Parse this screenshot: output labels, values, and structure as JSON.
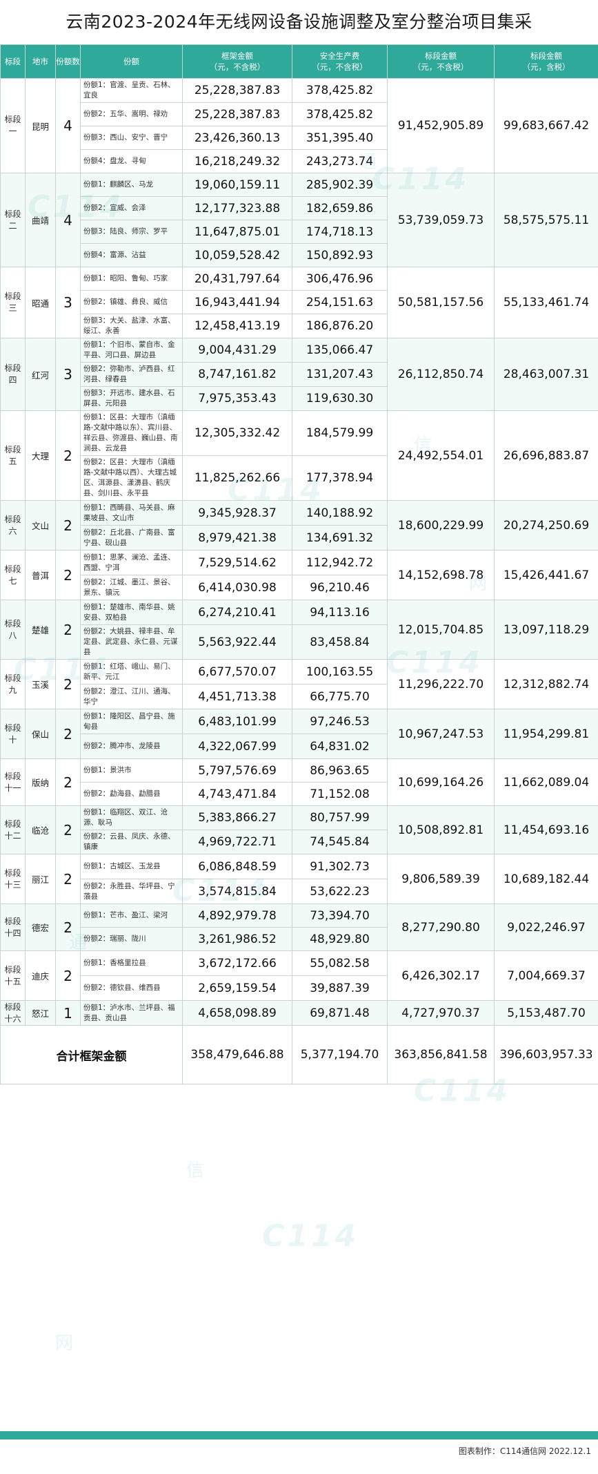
{
  "title": "云南2023-2024年无线网设备设施调整及室分整治项目集采",
  "headers": {
    "lot": "标段",
    "city": "地市",
    "count": "份额数",
    "share": "份额",
    "frame": "框架金额",
    "frame_sub": "（元，不含税）",
    "safety": "安全生产费",
    "safety_sub": "（元，不含税）",
    "lot_amount": "标段金额",
    "lot_amount_sub": "（元，不含税）",
    "lot_amount_tax": "标段金额",
    "lot_amount_tax_sub": "（元，含税）"
  },
  "lots": [
    {
      "lot": "标段一",
      "city": "昆明",
      "count": "4",
      "amount": "91,452,905.89",
      "amount_tax": "99,683,667.42",
      "shares": [
        {
          "desc": "份额1：官渡、呈贡、石林、宜良",
          "frame": "25,228,387.83",
          "safety": "378,425.82"
        },
        {
          "desc": "份额2：五华、嵩明、禄劝",
          "frame": "25,228,387.83",
          "safety": "378,425.82"
        },
        {
          "desc": "份额3：西山、安宁、晋宁",
          "frame": "23,426,360.13",
          "safety": "351,395.40"
        },
        {
          "desc": "份额4：盘龙、寻甸",
          "frame": "16,218,249.32",
          "safety": "243,273.74"
        }
      ]
    },
    {
      "lot": "标段二",
      "city": "曲靖",
      "count": "4",
      "amount": "53,739,059.73",
      "amount_tax": "58,575,575.11",
      "shares": [
        {
          "desc": "份额1：麒麟区、马龙",
          "frame": "19,060,159.11",
          "safety": "285,902.39"
        },
        {
          "desc": "份额2：宣威、会泽",
          "frame": "12,177,323.88",
          "safety": "182,659.86"
        },
        {
          "desc": "份额3：陆良、师宗、罗平",
          "frame": "11,647,875.01",
          "safety": "174,718.13"
        },
        {
          "desc": "份额4：富源、沾益",
          "frame": "10,059,528.42",
          "safety": "150,892.93"
        }
      ]
    },
    {
      "lot": "标段三",
      "city": "昭通",
      "count": "3",
      "amount": "50,581,157.56",
      "amount_tax": "55,133,461.74",
      "shares": [
        {
          "desc": "份额1：昭阳、鲁甸、巧家",
          "frame": "20,431,797.64",
          "safety": "306,476.96"
        },
        {
          "desc": "份额2：镇雄、彝良、威信",
          "frame": "16,943,441.94",
          "safety": "254,151.63"
        },
        {
          "desc": "份额3：大关、盐津、水富、绥江、永善",
          "frame": "12,458,413.19",
          "safety": "186,876.20"
        }
      ]
    },
    {
      "lot": "标段四",
      "city": "红河",
      "count": "3",
      "amount": "26,112,850.74",
      "amount_tax": "28,463,007.31",
      "shares": [
        {
          "desc": "份额1：个旧市、蒙自市、金平县、河口县、屏边县",
          "frame": "9,004,431.29",
          "safety": "135,066.47"
        },
        {
          "desc": "份额2：弥勒市、泸西县、红河县、绿春县",
          "frame": "8,747,161.82",
          "safety": "131,207.43"
        },
        {
          "desc": "份额3：开远市、建水县、石屏县、元阳县",
          "frame": "7,975,353.43",
          "safety": "119,630.30"
        }
      ]
    },
    {
      "lot": "标段五",
      "city": "大理",
      "count": "2",
      "amount": "24,492,554.01",
      "amount_tax": "26,696,883.87",
      "shares": [
        {
          "desc": "份额1：区县：大理市（滇缅路-文献中路以东）、宾川县、祥云县、弥渡县、巍山县、南涧县、云龙县",
          "frame": "12,305,332.42",
          "safety": "184,579.99"
        },
        {
          "desc": "份额2：区县：大理市（滇缅路-文献中路以西）、大理古城区、洱源县、漾濞县、鹤庆县、剑川县、永平县",
          "frame": "11,825,262.66",
          "safety": "177,378.94"
        }
      ]
    },
    {
      "lot": "标段六",
      "city": "文山",
      "count": "2",
      "amount": "18,600,229.99",
      "amount_tax": "20,274,250.69",
      "shares": [
        {
          "desc": "份额1：西畴县、马关县、麻栗坡县、文山市",
          "frame": "9,345,928.37",
          "safety": "140,188.92"
        },
        {
          "desc": "份额2：丘北县、广南县、富宁县、砚山县",
          "frame": "8,979,421.38",
          "safety": "134,691.32"
        }
      ]
    },
    {
      "lot": "标段七",
      "city": "普洱",
      "count": "2",
      "amount": "14,152,698.78",
      "amount_tax": "15,426,441.67",
      "shares": [
        {
          "desc": "份额1：思茅、澜沧、孟连、西盟、宁洱",
          "frame": "7,529,514.62",
          "safety": "112,942.72"
        },
        {
          "desc": "份额2：江城、墨江、景谷、景东、镇沅",
          "frame": "6,414,030.98",
          "safety": "96,210.46"
        }
      ]
    },
    {
      "lot": "标段八",
      "city": "楚雄",
      "count": "2",
      "amount": "12,015,704.85",
      "amount_tax": "13,097,118.29",
      "shares": [
        {
          "desc": "份额1：楚雄市、南华县、姚安县、双柏县",
          "frame": "6,274,210.41",
          "safety": "94,113.16"
        },
        {
          "desc": "份额2：大姚县、禄丰县、牟定县、武定县、永仁县、元谋县",
          "frame": "5,563,922.44",
          "safety": "83,458.84"
        }
      ]
    },
    {
      "lot": "标段九",
      "city": "玉溪",
      "count": "2",
      "amount": "11,296,222.70",
      "amount_tax": "12,312,882.74",
      "shares": [
        {
          "desc": "份额1：红塔、峨山、易门、新平、元江",
          "frame": "6,677,570.07",
          "safety": "100,163.55"
        },
        {
          "desc": "份额2：澄江、江川、通海、华宁",
          "frame": "4,451,713.38",
          "safety": "66,775.70"
        }
      ]
    },
    {
      "lot": "标段十",
      "city": "保山",
      "count": "2",
      "amount": "10,967,247.53",
      "amount_tax": "11,954,299.81",
      "shares": [
        {
          "desc": "份额1：隆阳区、昌宁县、施甸县",
          "frame": "6,483,101.99",
          "safety": "97,246.53"
        },
        {
          "desc": "份额2：腾冲市、龙陵县",
          "frame": "4,322,067.99",
          "safety": "64,831.02"
        }
      ]
    },
    {
      "lot": "标段十一",
      "city": "版纳",
      "count": "2",
      "amount": "10,699,164.26",
      "amount_tax": "11,662,089.04",
      "shares": [
        {
          "desc": "份额1：景洪市",
          "frame": "5,797,576.69",
          "safety": "86,963.65"
        },
        {
          "desc": "份额2：勐海县、勐腊县",
          "frame": "4,743,471.84",
          "safety": "71,152.08"
        }
      ]
    },
    {
      "lot": "标段十二",
      "city": "临沧",
      "count": "2",
      "amount": "10,508,892.81",
      "amount_tax": "11,454,693.16",
      "shares": [
        {
          "desc": "份额1：临翔区、双江、沧源、耿马",
          "frame": "5,383,866.27",
          "safety": "80,757.99"
        },
        {
          "desc": "份额2：云县、凤庆、永德、镇康",
          "frame": "4,969,722.71",
          "safety": "74,545.84"
        }
      ]
    },
    {
      "lot": "标段十三",
      "city": "丽江",
      "count": "2",
      "amount": "9,806,589.39",
      "amount_tax": "10,689,182.44",
      "shares": [
        {
          "desc": "份额1：古城区、玉龙县",
          "frame": "6,086,848.59",
          "safety": "91,302.73"
        },
        {
          "desc": "份额2：永胜县、华坪县、宁蒗县",
          "frame": "3,574,815.84",
          "safety": "53,622.23"
        }
      ]
    },
    {
      "lot": "标段十四",
      "city": "德宏",
      "count": "2",
      "amount": "8,277,290.80",
      "amount_tax": "9,022,246.97",
      "shares": [
        {
          "desc": "份额1：芒市、盈江、梁河",
          "frame": "4,892,979.78",
          "safety": "73,394.70"
        },
        {
          "desc": "份额2：瑞丽、陇川",
          "frame": "3,261,986.52",
          "safety": "48,929.80"
        }
      ]
    },
    {
      "lot": "标段十五",
      "city": "迪庆",
      "count": "2",
      "amount": "6,426,302.17",
      "amount_tax": "7,004,669.37",
      "shares": [
        {
          "desc": "份额1：香格里拉县",
          "frame": "3,672,172.66",
          "safety": "55,082.58"
        },
        {
          "desc": "份额2：德钦县、维西县",
          "frame": "2,659,159.54",
          "safety": "39,887.39"
        }
      ]
    },
    {
      "lot": "标段十六",
      "city": "怒江",
      "count": "1",
      "amount": "4,727,970.37",
      "amount_tax": "5,153,487.70",
      "shares": [
        {
          "desc": "份额1：泸水市、兰坪县、福贡县、贡山县",
          "frame": "4,658,098.89",
          "safety": "69,871.48"
        }
      ]
    }
  ],
  "total": {
    "label": "合计框架金额",
    "frame": "358,479,646.88",
    "safety": "5,377,194.70",
    "amount": "363,856,841.58",
    "amount_tax": "396,603,957.33"
  },
  "credit": "图表制作：C114通信网 2022.12.1",
  "watermark": {
    "logo": "C114",
    "ch1": "通",
    "ch2": "信",
    "ch3": "网"
  },
  "colors": {
    "accent": "#2ea99a",
    "band": "#f1faf7"
  }
}
